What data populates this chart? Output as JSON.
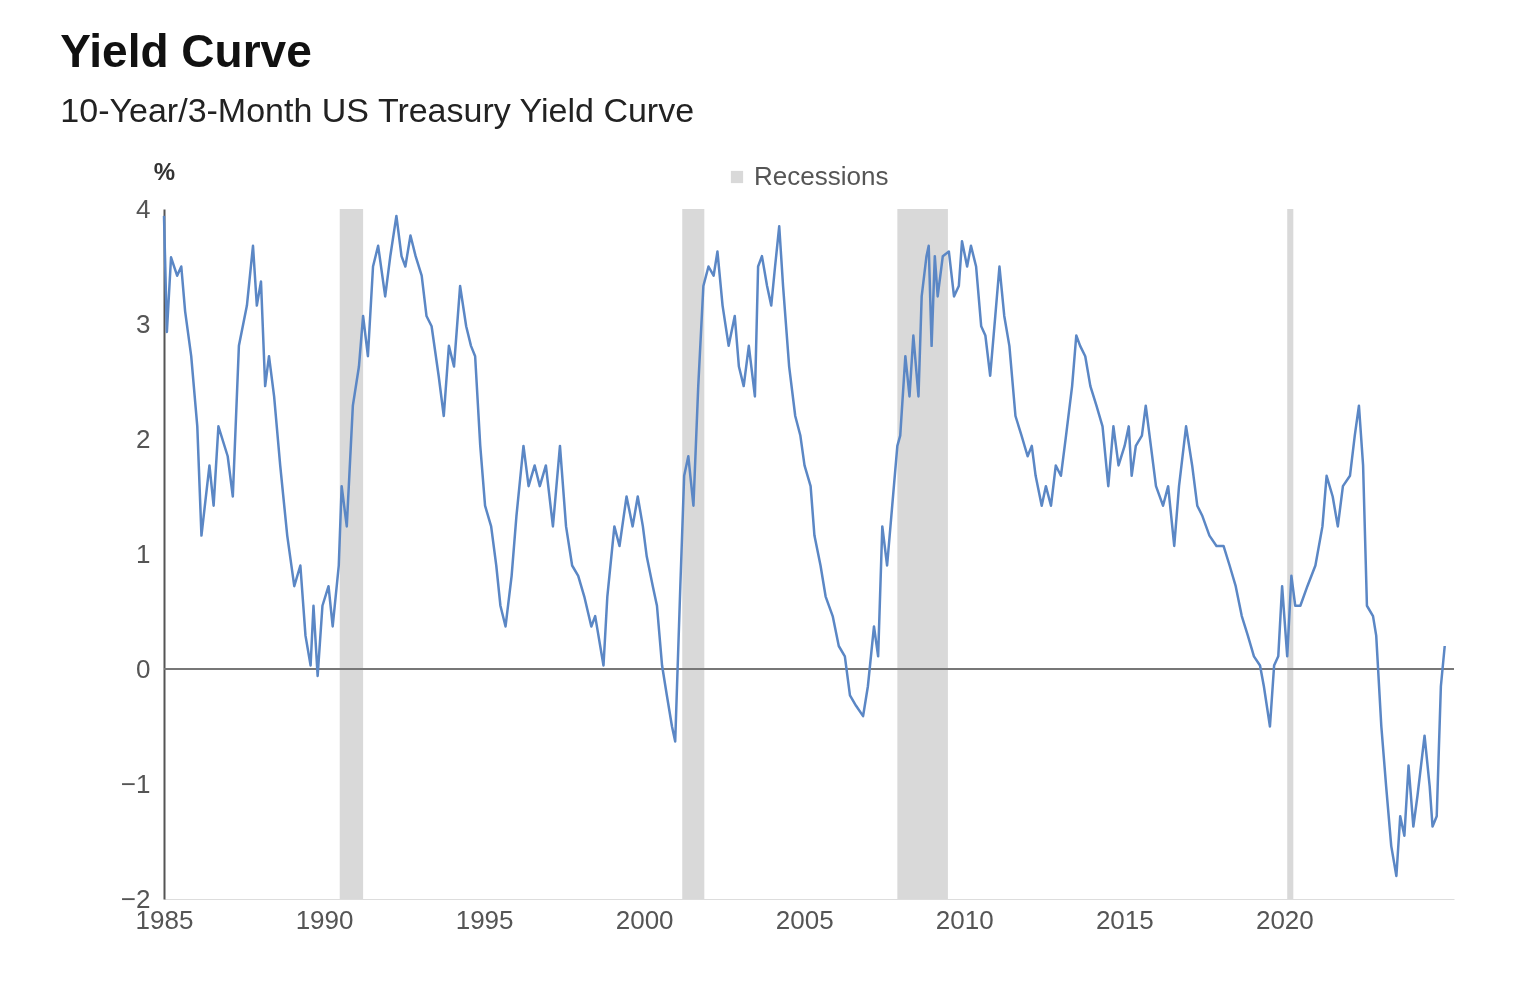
{
  "chart_data": {
    "type": "line",
    "title": "Yield Curve",
    "subtitle": "10-Year/3-Month US Treasury Yield Curve",
    "ylabel": "%",
    "xlim": [
      1985,
      2025.3
    ],
    "xticks": [
      1985,
      1990,
      1995,
      2000,
      2005,
      2010,
      2015,
      2020
    ],
    "ylim": [
      -2,
      4
    ],
    "yticks": [
      -2,
      -1,
      0,
      1,
      2,
      3,
      4
    ],
    "grid": false,
    "legend": "top",
    "marker": "none",
    "line_style": "solid",
    "ref_lines": [
      {
        "axis": "y",
        "value": 0,
        "color": "#777777"
      }
    ],
    "bands": [
      {
        "axis": "x",
        "from": 1990.49,
        "to": 1991.22,
        "label": "Recessions",
        "color": "#d9d9d9"
      },
      {
        "axis": "x",
        "from": 2001.19,
        "to": 2001.88,
        "color": "#d9d9d9"
      },
      {
        "axis": "x",
        "from": 2007.91,
        "to": 2009.49,
        "color": "#d9d9d9"
      },
      {
        "axis": "x",
        "from": 2020.09,
        "to": 2020.28,
        "color": "#d9d9d9"
      }
    ],
    "series": [
      {
        "color": "#5b87c5",
        "x": [
          1985.0,
          1985.09,
          1985.22,
          1985.41,
          1985.54,
          1985.66,
          1985.85,
          1986.04,
          1986.17,
          1986.42,
          1986.55,
          1986.7,
          1986.99,
          1987.15,
          1987.34,
          1987.59,
          1987.78,
          1987.9,
          1988.03,
          1988.16,
          1988.28,
          1988.44,
          1988.63,
          1988.85,
          1989.07,
          1989.26,
          1989.42,
          1989.58,
          1989.67,
          1989.8,
          1989.95,
          1990.14,
          1990.27,
          1990.46,
          1990.55,
          1990.71,
          1990.9,
          1991.09,
          1991.22,
          1991.37,
          1991.53,
          1991.69,
          1991.91,
          1992.07,
          1992.26,
          1992.42,
          1992.54,
          1992.7,
          1992.86,
          1993.05,
          1993.2,
          1993.36,
          1993.58,
          1993.74,
          1993.9,
          1994.06,
          1994.25,
          1994.44,
          1994.59,
          1994.72,
          1994.88,
          1995.03,
          1995.22,
          1995.38,
          1995.51,
          1995.67,
          1995.86,
          1996.01,
          1996.23,
          1996.39,
          1996.58,
          1996.74,
          1996.93,
          1997.15,
          1997.37,
          1997.56,
          1997.75,
          1997.94,
          1998.13,
          1998.35,
          1998.47,
          1998.73,
          1998.85,
          1999.07,
          1999.23,
          1999.45,
          1999.64,
          1999.8,
          1999.96,
          2000.08,
          2000.27,
          2000.4,
          2000.56,
          2000.71,
          2000.87,
          2000.97,
          2001.13,
          2001.25,
          2001.38,
          2001.54,
          2001.69,
          2001.85,
          2002.01,
          2002.17,
          2002.29,
          2002.45,
          2002.64,
          2002.83,
          2002.96,
          2003.11,
          2003.27,
          2003.46,
          2003.56,
          2003.68,
          2003.84,
          2003.97,
          2004.09,
          2004.22,
          2004.34,
          2004.53,
          2004.72,
          2004.88,
          2005.01,
          2005.2,
          2005.32,
          2005.51,
          2005.67,
          2005.89,
          2006.08,
          2006.27,
          2006.43,
          2006.62,
          2006.84,
          2006.99,
          2007.18,
          2007.31,
          2007.44,
          2007.59,
          2007.75,
          2007.91,
          2008.0,
          2008.16,
          2008.29,
          2008.41,
          2008.57,
          2008.67,
          2008.82,
          2008.89,
          2008.98,
          2009.08,
          2009.17,
          2009.33,
          2009.52,
          2009.68,
          2009.83,
          2009.93,
          2010.09,
          2010.21,
          2010.37,
          2010.53,
          2010.66,
          2010.81,
          2010.97,
          2011.1,
          2011.25,
          2011.41,
          2011.6,
          2011.79,
          2011.98,
          2012.11,
          2012.23,
          2012.42,
          2012.55,
          2012.71,
          2012.86,
          2013.02,
          2013.18,
          2013.37,
          2013.5,
          2013.62,
          2013.78,
          2013.94,
          2014.13,
          2014.32,
          2014.5,
          2014.66,
          2014.82,
          2015.01,
          2015.14,
          2015.23,
          2015.36,
          2015.55,
          2015.67,
          2015.83,
          2015.99,
          2016.21,
          2016.37,
          2016.56,
          2016.71,
          2016.93,
          2017.12,
          2017.28,
          2017.44,
          2017.66,
          2017.88,
          2018.1,
          2018.29,
          2018.48,
          2018.67,
          2018.86,
          2019.05,
          2019.24,
          2019.36,
          2019.55,
          2019.68,
          2019.81,
          2019.93,
          2020.09,
          2020.22,
          2020.34,
          2020.5,
          2020.72,
          2020.97,
          2021.19,
          2021.32,
          2021.51,
          2021.67,
          2021.83,
          2022.05,
          2022.2,
          2022.33,
          2022.46,
          2022.58,
          2022.77,
          2022.87,
          2023.03,
          2023.18,
          2023.34,
          2023.5,
          2023.62,
          2023.75,
          2023.88,
          2024.03,
          2024.16,
          2024.38,
          2024.54,
          2024.63,
          2024.76,
          2024.89,
          2025.01
        ],
        "values": [
          3.94,
          2.93,
          3.58,
          3.42,
          3.5,
          3.11,
          2.72,
          2.11,
          1.16,
          1.77,
          1.42,
          2.11,
          1.85,
          1.5,
          2.81,
          3.16,
          3.68,
          3.16,
          3.37,
          2.46,
          2.72,
          2.37,
          1.77,
          1.16,
          0.72,
          0.9,
          0.29,
          0.03,
          0.55,
          -0.06,
          0.55,
          0.72,
          0.37,
          0.9,
          1.59,
          1.24,
          2.29,
          2.63,
          3.07,
          2.72,
          3.5,
          3.68,
          3.24,
          3.59,
          3.94,
          3.59,
          3.5,
          3.77,
          3.59,
          3.42,
          3.07,
          2.98,
          2.55,
          2.2,
          2.81,
          2.63,
          3.33,
          2.98,
          2.81,
          2.72,
          1.94,
          1.42,
          1.24,
          0.9,
          0.55,
          0.37,
          0.81,
          1.33,
          1.94,
          1.59,
          1.77,
          1.59,
          1.77,
          1.24,
          1.94,
          1.24,
          0.9,
          0.81,
          0.63,
          0.37,
          0.46,
          0.03,
          0.63,
          1.24,
          1.07,
          1.5,
          1.24,
          1.5,
          1.24,
          0.98,
          0.72,
          0.55,
          0.03,
          -0.23,
          -0.5,
          -0.63,
          0.72,
          1.68,
          1.85,
          1.42,
          2.46,
          3.33,
          3.5,
          3.42,
          3.63,
          3.16,
          2.81,
          3.07,
          2.63,
          2.46,
          2.81,
          2.37,
          3.5,
          3.59,
          3.33,
          3.16,
          3.5,
          3.85,
          3.33,
          2.63,
          2.2,
          2.03,
          1.77,
          1.59,
          1.16,
          0.9,
          0.63,
          0.46,
          0.2,
          0.11,
          -0.23,
          -0.32,
          -0.41,
          -0.15,
          0.37,
          0.11,
          1.24,
          0.9,
          1.42,
          1.94,
          2.03,
          2.72,
          2.37,
          2.9,
          2.37,
          3.24,
          3.59,
          3.68,
          2.81,
          3.59,
          3.24,
          3.59,
          3.63,
          3.24,
          3.33,
          3.72,
          3.5,
          3.68,
          3.5,
          2.98,
          2.9,
          2.55,
          3.07,
          3.5,
          3.07,
          2.81,
          2.2,
          2.03,
          1.85,
          1.94,
          1.68,
          1.42,
          1.59,
          1.42,
          1.77,
          1.68,
          2.03,
          2.46,
          2.9,
          2.81,
          2.72,
          2.46,
          2.29,
          2.11,
          1.59,
          2.11,
          1.77,
          1.94,
          2.11,
          1.68,
          1.94,
          2.03,
          2.29,
          1.94,
          1.59,
          1.42,
          1.59,
          1.07,
          1.59,
          2.11,
          1.77,
          1.42,
          1.33,
          1.16,
          1.07,
          1.07,
          0.9,
          0.72,
          0.46,
          0.29,
          0.11,
          0.03,
          -0.15,
          -0.5,
          0.03,
          0.11,
          0.72,
          0.11,
          0.81,
          0.55,
          0.55,
          0.72,
          0.9,
          1.24,
          1.68,
          1.5,
          1.24,
          1.59,
          1.68,
          2.03,
          2.29,
          1.77,
          0.55,
          0.46,
          0.29,
          -0.5,
          -1.02,
          -1.54,
          -1.8,
          -1.28,
          -1.45,
          -0.84,
          -1.37,
          -1.1,
          -0.58,
          -1.02,
          -1.37,
          -1.28,
          -0.15,
          0.2
        ]
      }
    ]
  }
}
